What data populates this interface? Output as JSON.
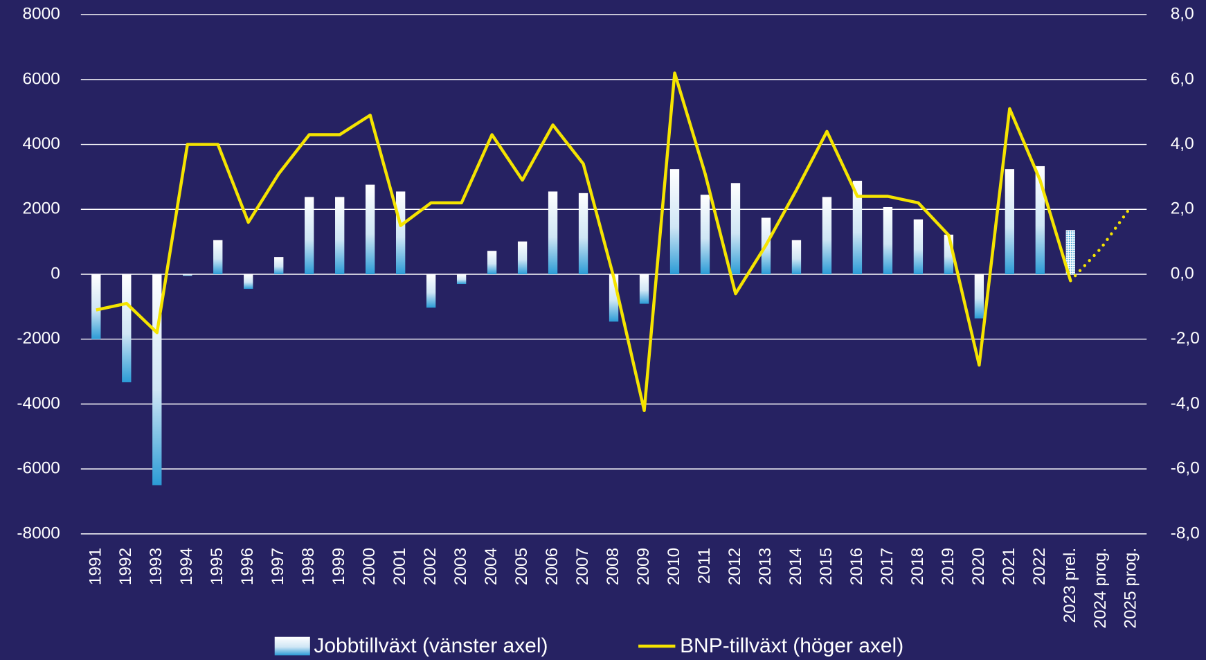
{
  "chart_data": {
    "type": "bar_line",
    "categories": [
      "1991",
      "1992",
      "1993",
      "1994",
      "1995",
      "1996",
      "1997",
      "1998",
      "1999",
      "2000",
      "2001",
      "2002",
      "2003",
      "2004",
      "2005",
      "2006",
      "2007",
      "2008",
      "2009",
      "2010",
      "2011",
      "2012",
      "2013",
      "2014",
      "2015",
      "2016",
      "2017",
      "2018",
      "2019",
      "2020",
      "2021",
      "2022",
      "2023 prel.",
      "2024 prog.",
      "2025 prog."
    ],
    "dotted_from": "2023 prel.",
    "series": [
      {
        "name": "Jobbtillväxt (vänster axel)",
        "type": "bar",
        "color": "#2b9bd6",
        "values": [
          -2000,
          -3330,
          -6500,
          -50,
          1050,
          -450,
          530,
          2380,
          2380,
          2760,
          2550,
          -1030,
          -300,
          720,
          1010,
          2550,
          2500,
          -1460,
          -910,
          3240,
          2450,
          2810,
          1740,
          1050,
          2380,
          2880,
          2070,
          1690,
          1220,
          -1360,
          3240,
          3330,
          1360,
          null,
          null
        ]
      },
      {
        "name": "BNP-tillväxt (höger axel)",
        "type": "line",
        "axis": "y2",
        "color": "#f5e400",
        "values": [
          -1.1,
          -0.9,
          -1.8,
          4.0,
          4.0,
          1.6,
          3.1,
          4.3,
          4.3,
          4.9,
          1.5,
          2.2,
          2.2,
          4.3,
          2.9,
          4.6,
          3.4,
          -0.1,
          -4.2,
          6.2,
          3.1,
          -0.6,
          0.9,
          2.6,
          4.4,
          2.4,
          2.4,
          2.2,
          1.2,
          -2.8,
          5.1,
          2.9,
          -0.2,
          0.8,
          2.1
        ]
      }
    ],
    "ylim": [
      -8000,
      8000
    ],
    "yticks": [
      -8000,
      -6000,
      -4000,
      -2000,
      0,
      2000,
      4000,
      6000,
      8000
    ],
    "y2lim": [
      -8,
      8
    ],
    "y2ticks": [
      {
        "value": -8,
        "label": "-8,0"
      },
      {
        "value": -6,
        "label": "-6,0"
      },
      {
        "value": -4,
        "label": "-4,0"
      },
      {
        "value": -2,
        "label": "-2,0"
      },
      {
        "value": 0,
        "label": "0,0"
      },
      {
        "value": 2,
        "label": "2,0"
      },
      {
        "value": 4,
        "label": "4,0"
      },
      {
        "value": 6,
        "label": "6,0"
      },
      {
        "value": 8,
        "label": "8,0"
      }
    ],
    "grid": true
  }
}
